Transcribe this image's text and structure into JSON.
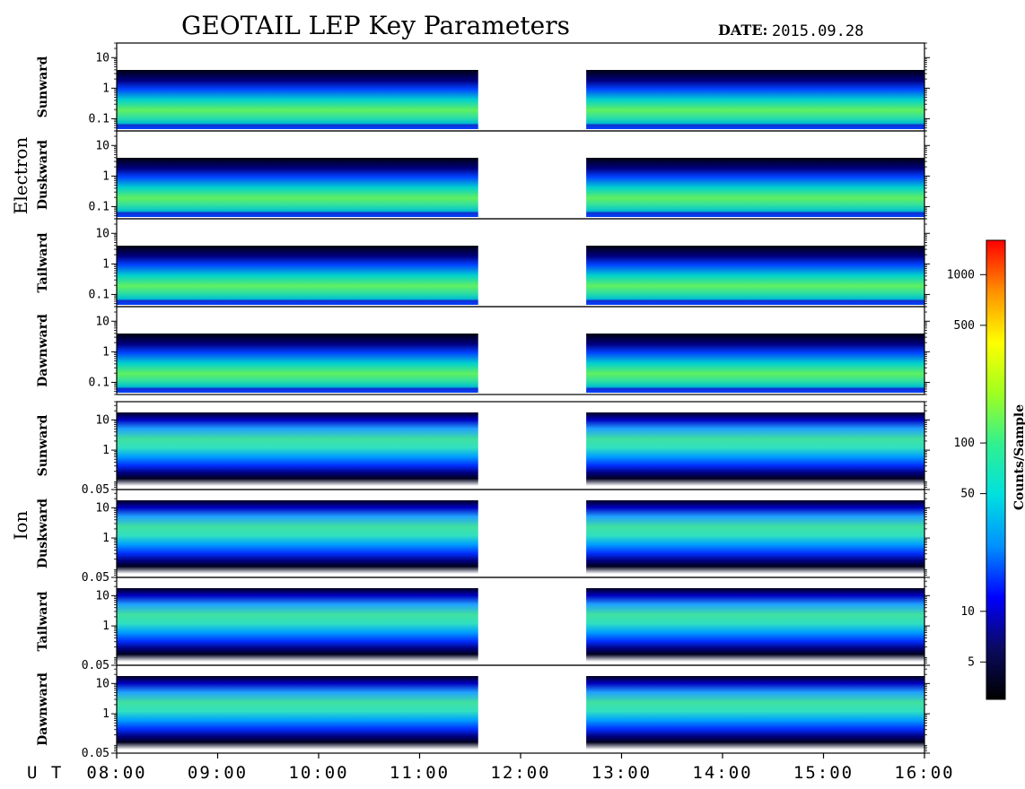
{
  "title": "GEOTAIL LEP Key Parameters",
  "date_label": "DATE:",
  "date_value": "2015.09.28",
  "x_axis": {
    "prefix": "U T",
    "ticks": [
      "08:00",
      "09:00",
      "10:00",
      "11:00",
      "12:00",
      "13:00",
      "14:00",
      "15:00",
      "16:00"
    ],
    "range_hours": [
      8,
      16
    ]
  },
  "groups": [
    {
      "name": "Electron",
      "panels": [
        "Sunward",
        "Duskward",
        "Tailward",
        "Dawnward"
      ]
    },
    {
      "name": "Ion",
      "panels": [
        "Sunward",
        "Duskward",
        "Tailward",
        "Dawnward"
      ]
    }
  ],
  "colorbar": {
    "title": "Counts/Sample",
    "ticks": [
      "1000",
      "500",
      "100",
      "50",
      "10",
      "5"
    ],
    "tick_values": [
      1000,
      500,
      100,
      50,
      10,
      5
    ],
    "range": [
      3,
      1600
    ],
    "scale": "log",
    "colors": [
      "#000000",
      "#0a0a60",
      "#0000ff",
      "#0090ff",
      "#00e0e0",
      "#30f090",
      "#a0ff20",
      "#ffff00",
      "#ff9000",
      "#ff0000"
    ]
  },
  "chart_data": {
    "type": "heatmap",
    "x": "UT time (hours)",
    "panels": [
      {
        "species": "Electron",
        "direction": "Sunward",
        "y_ticks": [
          "10",
          "1",
          "0.1"
        ],
        "y_tick_values": [
          10,
          1,
          0.1
        ],
        "y_scale": "log",
        "y_range": [
          0.04,
          30
        ]
      },
      {
        "species": "Electron",
        "direction": "Duskward",
        "y_ticks": [
          "10",
          "1",
          "0.1"
        ],
        "y_tick_values": [
          10,
          1,
          0.1
        ],
        "y_scale": "log",
        "y_range": [
          0.04,
          30
        ]
      },
      {
        "species": "Electron",
        "direction": "Tailward",
        "y_ticks": [
          "10",
          "1",
          "0.1"
        ],
        "y_tick_values": [
          10,
          1,
          0.1
        ],
        "y_scale": "log",
        "y_range": [
          0.04,
          30
        ]
      },
      {
        "species": "Electron",
        "direction": "Dawnward",
        "y_ticks": [
          "10",
          "1",
          "0.1"
        ],
        "y_tick_values": [
          10,
          1,
          0.1
        ],
        "y_scale": "log",
        "y_range": [
          0.04,
          30
        ]
      },
      {
        "species": "Ion",
        "direction": "Sunward",
        "y_ticks": [
          "10",
          "1",
          "0.05"
        ],
        "y_tick_values": [
          10,
          1,
          0.05
        ],
        "y_scale": "log",
        "y_range": [
          0.05,
          40
        ]
      },
      {
        "species": "Ion",
        "direction": "Duskward",
        "y_ticks": [
          "10",
          "1",
          "0.05"
        ],
        "y_tick_values": [
          10,
          1,
          0.05
        ],
        "y_scale": "log",
        "y_range": [
          0.05,
          40
        ]
      },
      {
        "species": "Ion",
        "direction": "Tailward",
        "y_ticks": [
          "10",
          "1",
          "0.05"
        ],
        "y_tick_values": [
          10,
          1,
          0.05
        ],
        "y_scale": "log",
        "y_range": [
          0.05,
          40
        ]
      },
      {
        "species": "Ion",
        "direction": "Dawnward",
        "y_ticks": [
          "10",
          "1",
          "0.05"
        ],
        "y_tick_values": [
          10,
          1,
          0.05
        ],
        "y_scale": "log",
        "y_range": [
          0.05,
          40
        ]
      }
    ],
    "data_gap_hours": [
      11.58,
      12.65
    ]
  }
}
